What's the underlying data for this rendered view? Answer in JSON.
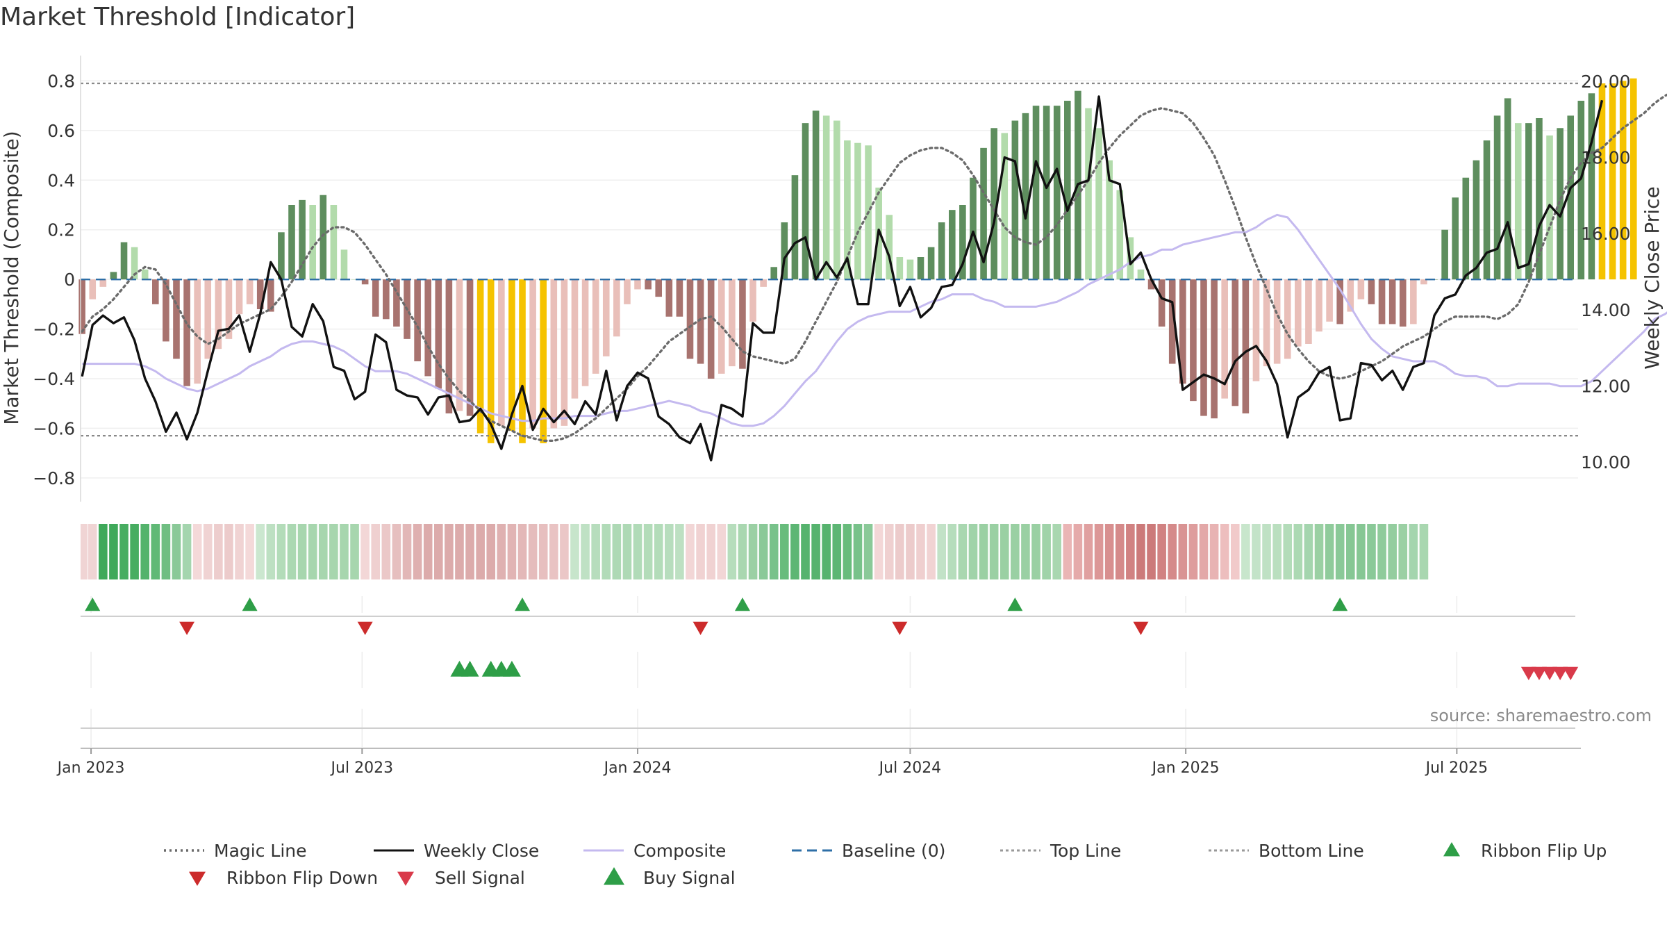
{
  "title": "Market Threshold [Indicator]",
  "source": "source: sharemaestro.com",
  "colors": {
    "bar_pos_dark": "#5e8e5e",
    "bar_pos_light": "#b2dbab",
    "bar_neg_dark": "#a8736f",
    "bar_neg_light": "#e9bfb9",
    "bar_extreme": "#f5c300",
    "weekly_close": "#111111",
    "composite": "#c4b9ef",
    "magic_line": "#6b6b6b",
    "baseline": "#2e6fa7",
    "threshold_lines": "#888888",
    "buy_marker": "#2e9e47",
    "sell_marker": "#d93a4a",
    "flip_down_marker": "#cc2b2b"
  },
  "chart_data": {
    "type": "bar",
    "title": "Market Threshold [Indicator]",
    "ylabel": "Market Threshold (Composite)",
    "y2label": "Weekly Close Price",
    "ylim": [
      -0.89,
      0.86
    ],
    "y2lim": [
      9.0,
      20.4
    ],
    "yticks": [
      "0.8",
      "0.6",
      "0.4",
      "0.2",
      "0",
      "−0.2",
      "−0.4",
      "−0.6",
      "−0.8"
    ],
    "ytick_values": [
      0.8,
      0.6,
      0.4,
      0.2,
      0,
      -0.2,
      -0.4,
      -0.6,
      -0.8
    ],
    "y2ticks": [
      "20.00",
      "18.00",
      "16.00",
      "14.00",
      "12.00",
      "10.00"
    ],
    "y2tick_values": [
      20,
      18,
      16,
      14,
      12,
      10
    ],
    "xlim": [
      "2022-12-25",
      "2025-09-20"
    ],
    "xticks": [
      {
        "label": "Jan 2023",
        "date": "2023-01-01"
      },
      {
        "label": "Jul 2023",
        "date": "2023-07-01"
      },
      {
        "label": "Jan 2024",
        "date": "2024-01-01"
      },
      {
        "label": "Jul 2024",
        "date": "2024-07-01"
      },
      {
        "label": "Jan 2025",
        "date": "2025-01-01"
      },
      {
        "label": "Jul 2025",
        "date": "2025-07-01"
      }
    ],
    "first_week": "2022-12-26",
    "top_line": 0.79,
    "bottom_line": -0.63,
    "baseline": 0,
    "bar_values": [
      -0.22,
      -0.08,
      -0.03,
      0.03,
      0.15,
      0.13,
      0.04,
      -0.1,
      -0.25,
      -0.32,
      -0.43,
      -0.42,
      -0.32,
      -0.28,
      -0.24,
      -0.14,
      -0.1,
      -0.12,
      -0.13,
      0.19,
      0.3,
      0.32,
      0.3,
      0.34,
      0.3,
      0.12,
      0.0,
      -0.02,
      -0.15,
      -0.16,
      -0.19,
      -0.24,
      -0.33,
      -0.39,
      -0.44,
      -0.54,
      -0.53,
      -0.55,
      -0.62,
      -0.66,
      -0.59,
      -0.61,
      -0.66,
      -0.6,
      -0.66,
      -0.6,
      -0.59,
      -0.48,
      -0.43,
      -0.38,
      -0.31,
      -0.23,
      -0.1,
      -0.04,
      -0.04,
      -0.07,
      -0.15,
      -0.15,
      -0.32,
      -0.34,
      -0.4,
      -0.38,
      -0.35,
      -0.36,
      -0.17,
      -0.03,
      0.05,
      0.23,
      0.42,
      0.63,
      0.68,
      0.66,
      0.64,
      0.56,
      0.55,
      0.54,
      0.37,
      0.26,
      0.09,
      0.08,
      0.09,
      0.13,
      0.23,
      0.28,
      0.3,
      0.41,
      0.53,
      0.61,
      0.59,
      0.64,
      0.67,
      0.7,
      0.7,
      0.7,
      0.72,
      0.76,
      0.69,
      0.61,
      0.48,
      0.36,
      0.17,
      0.04,
      -0.04,
      -0.19,
      -0.34,
      -0.42,
      -0.49,
      -0.55,
      -0.56,
      -0.48,
      -0.51,
      -0.54,
      -0.41,
      -0.35,
      -0.34,
      -0.32,
      -0.27,
      -0.26,
      -0.21,
      -0.17,
      -0.18,
      -0.13,
      -0.08,
      -0.1,
      -0.18,
      -0.18,
      -0.19,
      -0.18,
      -0.02,
      0.0,
      0.2,
      0.33,
      0.41,
      0.48,
      0.56,
      0.66,
      0.73,
      0.63,
      0.63,
      0.65,
      0.58,
      0.61,
      0.66,
      0.72,
      0.75,
      0.79,
      0.79,
      0.8,
      0.81
    ],
    "magic_line": [
      -0.21,
      -0.15,
      -0.12,
      -0.08,
      -0.03,
      0.02,
      0.05,
      0.04,
      -0.02,
      -0.1,
      -0.18,
      -0.23,
      -0.26,
      -0.24,
      -0.21,
      -0.18,
      -0.16,
      -0.14,
      -0.12,
      -0.07,
      -0.01,
      0.06,
      0.13,
      0.18,
      0.21,
      0.21,
      0.19,
      0.14,
      0.08,
      0.02,
      -0.05,
      -0.12,
      -0.19,
      -0.27,
      -0.34,
      -0.4,
      -0.45,
      -0.49,
      -0.53,
      -0.57,
      -0.59,
      -0.61,
      -0.63,
      -0.64,
      -0.65,
      -0.65,
      -0.64,
      -0.62,
      -0.59,
      -0.56,
      -0.52,
      -0.48,
      -0.44,
      -0.39,
      -0.35,
      -0.3,
      -0.25,
      -0.22,
      -0.19,
      -0.16,
      -0.15,
      -0.19,
      -0.24,
      -0.29,
      -0.31,
      -0.32,
      -0.33,
      -0.34,
      -0.32,
      -0.25,
      -0.17,
      -0.09,
      -0.01,
      0.09,
      0.19,
      0.27,
      0.35,
      0.41,
      0.47,
      0.5,
      0.52,
      0.53,
      0.53,
      0.51,
      0.48,
      0.42,
      0.35,
      0.28,
      0.21,
      0.17,
      0.15,
      0.14,
      0.17,
      0.22,
      0.28,
      0.34,
      0.4,
      0.47,
      0.53,
      0.58,
      0.62,
      0.66,
      0.68,
      0.69,
      0.68,
      0.67,
      0.63,
      0.57,
      0.5,
      0.4,
      0.29,
      0.17,
      0.06,
      -0.04,
      -0.14,
      -0.22,
      -0.28,
      -0.33,
      -0.37,
      -0.39,
      -0.4,
      -0.39,
      -0.37,
      -0.35,
      -0.33,
      -0.3,
      -0.27,
      -0.25,
      -0.23,
      -0.2,
      -0.17,
      -0.15,
      -0.15,
      -0.15,
      -0.15,
      -0.16,
      -0.14,
      -0.1,
      -0.01,
      0.1,
      0.21,
      0.32,
      0.41,
      0.47,
      0.51,
      0.53,
      0.57,
      0.61,
      0.64,
      0.67,
      0.71,
      0.74,
      0.76
    ],
    "composite": [
      -0.34,
      -0.34,
      -0.34,
      -0.34,
      -0.34,
      -0.34,
      -0.35,
      -0.37,
      -0.4,
      -0.42,
      -0.44,
      -0.45,
      -0.44,
      -0.42,
      -0.4,
      -0.38,
      -0.35,
      -0.33,
      -0.31,
      -0.28,
      -0.26,
      -0.25,
      -0.25,
      -0.26,
      -0.27,
      -0.29,
      -0.32,
      -0.35,
      -0.37,
      -0.37,
      -0.37,
      -0.38,
      -0.4,
      -0.42,
      -0.44,
      -0.46,
      -0.48,
      -0.5,
      -0.52,
      -0.54,
      -0.55,
      -0.56,
      -0.57,
      -0.57,
      -0.56,
      -0.56,
      -0.56,
      -0.55,
      -0.55,
      -0.55,
      -0.54,
      -0.53,
      -0.53,
      -0.52,
      -0.51,
      -0.5,
      -0.49,
      -0.5,
      -0.51,
      -0.53,
      -0.54,
      -0.56,
      -0.58,
      -0.59,
      -0.59,
      -0.58,
      -0.55,
      -0.51,
      -0.46,
      -0.41,
      -0.37,
      -0.31,
      -0.25,
      -0.2,
      -0.17,
      -0.15,
      -0.14,
      -0.13,
      -0.13,
      -0.13,
      -0.11,
      -0.09,
      -0.08,
      -0.06,
      -0.06,
      -0.06,
      -0.08,
      -0.09,
      -0.11,
      -0.11,
      -0.11,
      -0.11,
      -0.1,
      -0.09,
      -0.07,
      -0.05,
      -0.02,
      0.0,
      0.02,
      0.04,
      0.07,
      0.09,
      0.1,
      0.12,
      0.12,
      0.14,
      0.15,
      0.16,
      0.17,
      0.18,
      0.19,
      0.19,
      0.21,
      0.24,
      0.26,
      0.25,
      0.2,
      0.14,
      0.08,
      0.02,
      -0.04,
      -0.11,
      -0.18,
      -0.24,
      -0.28,
      -0.31,
      -0.32,
      -0.33,
      -0.33,
      -0.33,
      -0.35,
      -0.38,
      -0.39,
      -0.39,
      -0.4,
      -0.43,
      -0.43,
      -0.42,
      -0.42,
      -0.42,
      -0.42,
      -0.43,
      -0.43,
      -0.43,
      -0.41,
      -0.37,
      -0.33,
      -0.29,
      -0.25,
      -0.21,
      -0.16,
      -0.14,
      -0.11,
      -0.1,
      -0.08,
      -0.05,
      -0.02,
      0.02,
      0.07,
      0.14,
      0.21
    ],
    "weekly_close": [
      12.25,
      13.6,
      13.85,
      13.65,
      13.8,
      13.2,
      12.2,
      11.6,
      10.8,
      11.3,
      10.6,
      11.3,
      12.4,
      13.45,
      13.5,
      13.85,
      12.9,
      13.9,
      15.25,
      14.8,
      13.55,
      13.3,
      14.15,
      13.7,
      12.5,
      12.4,
      11.65,
      11.85,
      13.35,
      13.15,
      11.9,
      11.75,
      11.7,
      11.25,
      11.7,
      11.75,
      11.05,
      11.1,
      11.4,
      11.0,
      10.35,
      11.25,
      12.0,
      10.85,
      11.4,
      11.05,
      11.35,
      11.0,
      11.6,
      11.25,
      12.4,
      11.1,
      12.0,
      12.35,
      12.2,
      11.2,
      11.0,
      10.65,
      10.5,
      11.0,
      10.05,
      11.5,
      11.4,
      11.2,
      13.65,
      13.4,
      13.4,
      15.35,
      15.75,
      15.9,
      14.8,
      15.25,
      14.85,
      15.35,
      14.15,
      14.15,
      16.1,
      15.4,
      14.1,
      14.6,
      13.8,
      14.05,
      14.6,
      14.65,
      15.2,
      16.05,
      15.25,
      16.3,
      18.0,
      17.9,
      16.4,
      17.9,
      17.2,
      17.7,
      16.6,
      17.3,
      17.4,
      19.6,
      17.4,
      17.3,
      15.2,
      15.5,
      14.8,
      14.3,
      14.2,
      11.9,
      12.1,
      12.3,
      12.2,
      12.05,
      12.65,
      12.9,
      13.05,
      12.65,
      12.05,
      10.65,
      11.7,
      11.9,
      12.35,
      12.5,
      11.1,
      11.15,
      12.6,
      12.55,
      12.15,
      12.4,
      11.9,
      12.5,
      12.6,
      13.85,
      14.3,
      14.4,
      14.9,
      15.1,
      15.5,
      15.6,
      16.3,
      15.1,
      15.2,
      16.2,
      16.75,
      16.45,
      17.2,
      17.45,
      18.4,
      19.5
    ]
  },
  "ribbon_colors": [
    "#f0d4d4",
    "#3fa95a",
    "#3fa95a",
    "#47ad61",
    "#47ad61",
    "#54b36c",
    "#60b976",
    "#6fbe82",
    "#8ac998",
    "#a4d5ae",
    "#f4d9d9",
    "#f0d3d3",
    "#edcdcd",
    "#eccbcb",
    "#f0d3d3",
    "#f4d9d9",
    "#cbe7cf",
    "#bde0c2",
    "#b3dcb9",
    "#abd8b2",
    "#a7d6ae",
    "#a7d6ae",
    "#a7d6ae",
    "#a7d6ae",
    "#a7d6ae",
    "#a7d6ae",
    "#f3d7d7",
    "#efd0d0",
    "#ebc8c8",
    "#e6bfbf",
    "#e2b7b7",
    "#dfb0b0",
    "#dcabab",
    "#dcabab",
    "#dcabab",
    "#dcabab",
    "#dcabab",
    "#dcabab",
    "#dcabab",
    "#dfb1b1",
    "#e1b4b4",
    "#e3b8b8",
    "#e5bcbc",
    "#e7bfbf",
    "#e9c3c3",
    "#ebc7c7",
    "#c7e5cb",
    "#bfe1c4",
    "#b7ddbd",
    "#b1dbb8",
    "#aed9b5",
    "#aed9b5",
    "#b1dbb8",
    "#b3dcb9",
    "#b3dcb9",
    "#b7ddbd",
    "#bde0c2",
    "#f2d6d6",
    "#f0d2d2",
    "#f0d2d2",
    "#f2d6d6",
    "#b6ddbc",
    "#a9d7b0",
    "#9bd0a4",
    "#8ac998",
    "#78c28a",
    "#68bc7c",
    "#5db674",
    "#56b36e",
    "#56b36e",
    "#56b36e",
    "#5db674",
    "#68bc7c",
    "#78c28a",
    "#8ac998",
    "#f3d7d7",
    "#efd0d0",
    "#eccbcb",
    "#eccbcb",
    "#efcfcf",
    "#f1d3d3",
    "#c2e2c7",
    "#b6ddbc",
    "#a9d7b0",
    "#a0d3a9",
    "#9ad0a3",
    "#9ad0a3",
    "#9ad0a3",
    "#9ad0a3",
    "#9ad0a3",
    "#9ad0a3",
    "#a0d3a9",
    "#a9d7b0",
    "#eab5b5",
    "#e5aaaa",
    "#e0a0a0",
    "#dc9797",
    "#d88f8f",
    "#d58a8a",
    "#d18282",
    "#cc7a7a",
    "#cc7a7a",
    "#d18282",
    "#d58a8a",
    "#d99393",
    "#de9d9d",
    "#e3a8a8",
    "#e8b3b3",
    "#edbebe",
    "#f1caca",
    "#c8e6cc",
    "#c3e3c8",
    "#bfe1c4",
    "#badfbf",
    "#b3dcb9",
    "#acd9b3",
    "#a4d5ae",
    "#9ad0a3",
    "#8fcb9b",
    "#8ac998",
    "#86c794",
    "#86c794",
    "#8ac998",
    "#8fcb9b",
    "#94cd9f",
    "#9bd0a4",
    "#a4d5ae",
    "#a9d7b0"
  ],
  "signals": {
    "ribbon_flip_up_dates": [
      "2023-01-02",
      "2023-04-17",
      "2023-10-16",
      "2024-03-11",
      "2024-09-09",
      "2025-04-14"
    ],
    "ribbon_flip_down_dates": [
      "2023-03-06",
      "2023-07-03",
      "2024-02-12",
      "2024-06-24",
      "2024-12-02"
    ],
    "buy_signal_dates": [
      "2023-09-04",
      "2023-09-11",
      "2023-09-25",
      "2023-10-02",
      "2023-10-09"
    ],
    "sell_signal_dates": [
      "2025-08-18",
      "2025-08-25",
      "2025-09-01",
      "2025-09-08",
      "2025-09-15"
    ]
  },
  "legend": {
    "items": [
      {
        "label": "Magic Line",
        "kind": "dotted",
        "color": "#6b6b6b"
      },
      {
        "label": "Weekly Close",
        "kind": "solid",
        "color": "#111111"
      },
      {
        "label": "Composite",
        "kind": "solid",
        "color": "#c4b9ef"
      },
      {
        "label": "Baseline (0)",
        "kind": "dashed",
        "color": "#2e6fa7"
      },
      {
        "label": "Top Line",
        "kind": "dashed",
        "color": "#999999"
      },
      {
        "label": "Bottom Line",
        "kind": "dashed",
        "color": "#999999"
      },
      {
        "label": "Ribbon Flip Up",
        "kind": "tri-up",
        "color": "#2e9e47"
      },
      {
        "label": "Ribbon Flip Down",
        "kind": "tri-down",
        "color": "#cc2b2b"
      },
      {
        "label": "Sell Signal",
        "kind": "tri-down",
        "color": "#d93a4a"
      },
      {
        "label": "Buy Signal",
        "kind": "tri-up",
        "color": "#2e9e47"
      }
    ]
  }
}
